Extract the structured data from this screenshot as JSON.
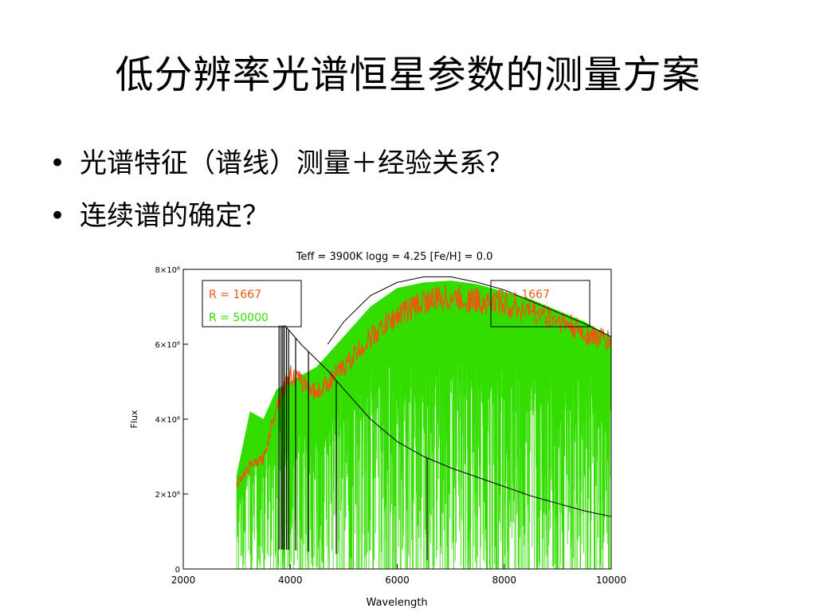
{
  "slide": {
    "title": "低分辨率光谱恒星参数的测量方案",
    "bullets": [
      "光谱特征（谱线）测量＋经验关系？",
      "连续谱的确定？"
    ],
    "bullet_symbol": "•"
  },
  "chart_data": {
    "type": "line",
    "title": "Teff = 3900K   logg = 4.25   [Fe/H] = 0.0",
    "xlabel": "Wavelength",
    "ylabel": "Flux",
    "xlim": [
      2000,
      10000
    ],
    "ylim": [
      0,
      8000000
    ],
    "x_ticks": [
      2000,
      4000,
      6000,
      8000,
      10000
    ],
    "y_ticks": [
      {
        "value": 0,
        "label": "0"
      },
      {
        "value": 2000000,
        "label": "2×10⁶"
      },
      {
        "value": 4000000,
        "label": "4×10⁶"
      },
      {
        "value": 6000000,
        "label": "6×10⁶"
      },
      {
        "value": 8000000,
        "label": "8×10⁶"
      }
    ],
    "legends": [
      {
        "position": "top-left",
        "entries": [
          {
            "label": "R = 1667",
            "color": "#e85a10"
          },
          {
            "label": "R = 50000",
            "color": "#33dd00"
          }
        ]
      },
      {
        "position": "top-right",
        "entries": [
          {
            "label": "R = 1667",
            "color": "#e85a10"
          },
          {
            "label": "R = 50000",
            "color": "#33dd00"
          }
        ]
      }
    ],
    "series": [
      {
        "name": "R = 50000",
        "color": "#33dd00",
        "x": [
          3000,
          3250,
          3500,
          3750,
          4000,
          4500,
          5000,
          5500,
          6000,
          6500,
          7000,
          7500,
          8000,
          8500,
          9000,
          9500,
          10000
        ],
        "y": [
          2500000,
          4200000,
          4000000,
          4800000,
          5000000,
          5400000,
          6200000,
          7000000,
          7500000,
          7650000,
          7700000,
          7600000,
          7400000,
          7200000,
          6900000,
          6600000,
          6200000
        ]
      },
      {
        "name": "R = 1667",
        "color": "#e85a10",
        "x": [
          3000,
          3250,
          3500,
          3750,
          4000,
          4500,
          5000,
          5500,
          6000,
          6500,
          7000,
          7500,
          8000,
          8500,
          9000,
          9500,
          10000
        ],
        "y": [
          2300000,
          2800000,
          3000000,
          4500000,
          5300000,
          4800000,
          5500000,
          6300000,
          6900000,
          7300000,
          7400000,
          7300000,
          7200000,
          7000000,
          6800000,
          6400000,
          6200000
        ]
      },
      {
        "name": "blackbody envelope (upper)",
        "color": "#000000",
        "x": [
          4700,
          5000,
          5500,
          6000,
          6500,
          7000,
          7500,
          8000,
          8500,
          9000,
          9500,
          10000
        ],
        "y": [
          6000000,
          6600000,
          7300000,
          7650000,
          7800000,
          7800000,
          7650000,
          7450000,
          7150000,
          6850000,
          6550000,
          6200000
        ]
      },
      {
        "name": "model continuum (lower)",
        "color": "#000000",
        "x": [
          3900,
          4200,
          4700,
          5000,
          5500,
          6000,
          6500,
          7000,
          7500,
          8000,
          8500,
          9000,
          9500,
          10000
        ],
        "y": [
          6500000,
          6000000,
          5300000,
          4800000,
          4000000,
          3400000,
          3000000,
          2700000,
          2450000,
          2200000,
          1950000,
          1750000,
          1550000,
          1400000
        ]
      }
    ],
    "grid": false
  }
}
